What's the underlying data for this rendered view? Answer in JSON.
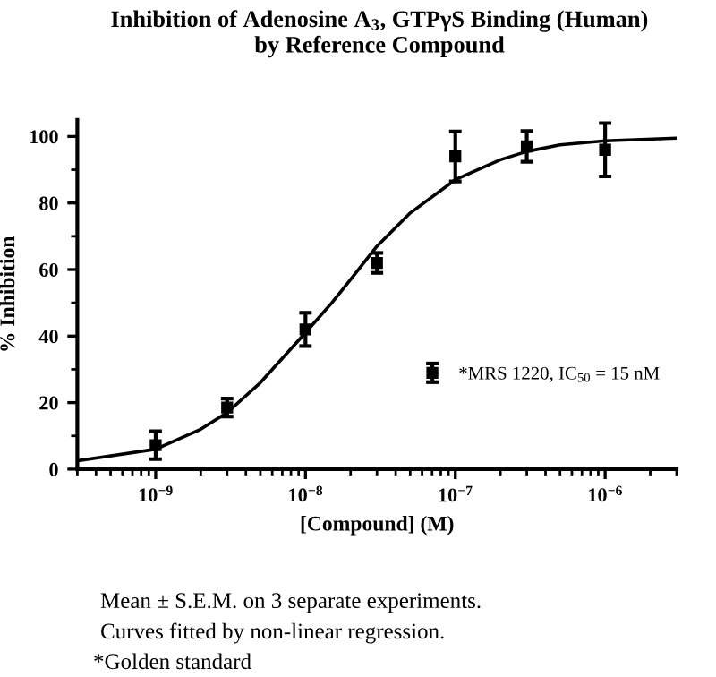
{
  "chart_data": {
    "type": "scatter",
    "title": "Inhibition of Adenosine A$_{3}$, GTPγS Binding (Human)\nby Reference Compound",
    "xlabel": "[Compound] (M)",
    "ylabel": "% Inhibition",
    "annotations": [
      "Mean ± S.E.M. on 3 separate experiments.",
      "Curves fitted by non-linear regression.",
      "*Golden standard"
    ],
    "log": "x",
    "xlim": [
      3e-10,
      3e-06
    ],
    "xticks": [
      {
        "value": 1e-09,
        "label": "10$^{−9}$"
      },
      {
        "value": 1e-08,
        "label": "10$^{−8}$"
      },
      {
        "value": 1e-07,
        "label": "10$^{−7}$"
      },
      {
        "value": 1e-06,
        "label": "10$^{−6}$"
      }
    ],
    "ylim": [
      0,
      105
    ],
    "yticks": [
      0,
      20,
      40,
      60,
      80,
      100
    ],
    "grid": false,
    "legend": "right",
    "series": [
      {
        "name": "*MRS 1220, IC$_{50}$ = 15 nM",
        "color": "#000000",
        "marker": "square",
        "x": [
          1e-09,
          3e-09,
          1e-08,
          3e-08,
          1e-07,
          3e-07,
          1e-06
        ],
        "values": [
          7.2,
          18.5,
          42,
          62,
          94,
          97,
          96
        ],
        "errors": [
          4.2,
          2.7,
          5,
          3,
          7.5,
          4.6,
          8
        ]
      },
      {
        "type": "line",
        "color": "#000000",
        "marker": "none",
        "x": [
          3e-10,
          1e-09,
          2e-09,
          3e-09,
          5e-09,
          1e-08,
          1.5e-08,
          2e-08,
          3e-08,
          5e-08,
          1e-07,
          2e-07,
          3e-07,
          5e-07,
          1e-06,
          3e-06
        ],
        "values": [
          2.5,
          6,
          12,
          17,
          26,
          41,
          50,
          57,
          67,
          77,
          87,
          93,
          95.5,
          97.5,
          98.7,
          99.5
        ]
      }
    ]
  }
}
